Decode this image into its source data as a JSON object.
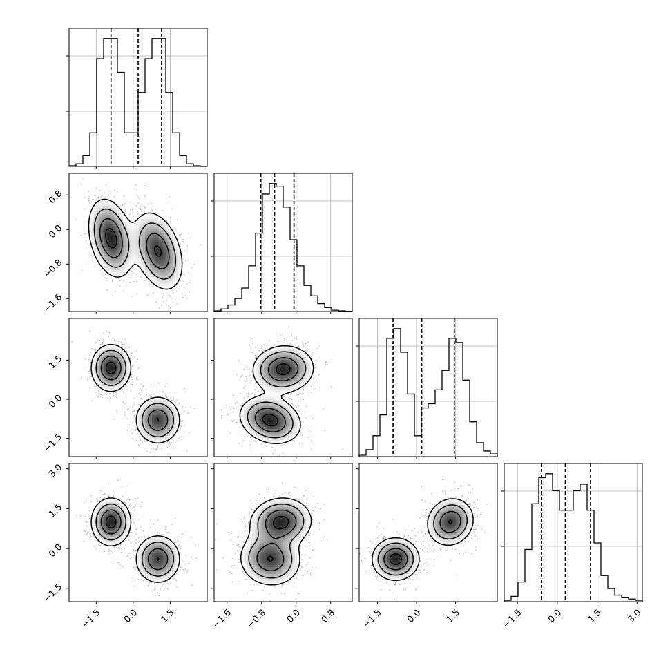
{
  "chart_data": {
    "type": "corner",
    "title": "",
    "n_parameters": 4,
    "parameter_labels": [
      "",
      "",
      "",
      ""
    ],
    "grid": true,
    "quantiles": [
      0.16,
      0.5,
      0.84
    ],
    "axis_ranges": [
      [
        -2.6,
        3.0
      ],
      [
        -1.9,
        1.3
      ],
      [
        -2.2,
        3.1
      ],
      [
        -2.0,
        3.2
      ]
    ],
    "ticks": [
      {
        "values": [
          -1.5,
          0.0,
          1.5
        ],
        "labels": [
          "−1.5",
          "0.0",
          "1.5"
        ]
      },
      {
        "values": [
          -1.6,
          -0.8,
          0.0,
          0.8
        ],
        "labels": [
          "−1.6",
          "−0.8",
          "0.0",
          "0.8"
        ]
      },
      {
        "values": [
          -1.5,
          0.0,
          1.5
        ],
        "labels": [
          "−1.5",
          "0.0",
          "1.5"
        ]
      },
      {
        "values": [
          -1.5,
          0.0,
          1.5,
          3.0
        ],
        "labels": [
          "−1.5",
          "0.0",
          "1.5",
          "3.0"
        ]
      }
    ],
    "diagonal_histograms": [
      {
        "parameter": 0,
        "bins": 20,
        "counts": [
          0.5,
          2,
          8,
          25,
          80,
          95,
          95,
          70,
          25,
          25,
          55,
          80,
          95,
          95,
          55,
          25,
          8,
          2,
          0.5,
          0
        ],
        "quantile_values": [
          -0.9,
          0.2,
          1.15
        ]
      },
      {
        "parameter": 1,
        "bins": 20,
        "counts": [
          0.5,
          2,
          5,
          10,
          18,
          35,
          60,
          90,
          98,
          96,
          80,
          55,
          35,
          20,
          12,
          6,
          3,
          1,
          0.5,
          0.2
        ],
        "quantile_values": [
          -0.82,
          -0.5,
          -0.05
        ]
      },
      {
        "parameter": 2,
        "bins": 20,
        "counts": [
          1,
          5,
          15,
          30,
          85,
          92,
          75,
          45,
          15,
          35,
          38,
          48,
          62,
          85,
          82,
          55,
          25,
          10,
          4,
          2
        ],
        "quantile_values": [
          -0.9,
          0.2,
          1.45
        ]
      },
      {
        "parameter": 3,
        "bins": 20,
        "counts": [
          1,
          4,
          15,
          40,
          75,
          95,
          98,
          85,
          70,
          70,
          85,
          90,
          70,
          45,
          20,
          10,
          5,
          3,
          2,
          1
        ],
        "quantile_values": [
          -0.6,
          0.3,
          1.25
        ]
      }
    ],
    "pairwise_panels": [
      {
        "x": 0,
        "y": 1,
        "modes": [
          {
            "center": [
              -0.9,
              -0.2
            ],
            "sd": [
              0.45,
              0.45
            ],
            "rho": -0.3,
            "weight": 0.5
          },
          {
            "center": [
              1.0,
              -0.5
            ],
            "sd": [
              0.5,
              0.45
            ],
            "rho": -0.35,
            "weight": 0.5
          }
        ]
      },
      {
        "x": 0,
        "y": 2,
        "modes": [
          {
            "center": [
              -0.9,
              1.2
            ],
            "sd": [
              0.4,
              0.45
            ],
            "rho": 0.0,
            "weight": 0.5
          },
          {
            "center": [
              1.0,
              -0.8
            ],
            "sd": [
              0.45,
              0.45
            ],
            "rho": 0.0,
            "weight": 0.5
          }
        ]
      },
      {
        "x": 1,
        "y": 2,
        "modes": [
          {
            "center": [
              -0.3,
              1.15
            ],
            "sd": [
              0.35,
              0.45
            ],
            "rho": 0.05,
            "weight": 0.5
          },
          {
            "center": [
              -0.6,
              -0.8
            ],
            "sd": [
              0.35,
              0.45
            ],
            "rho": -0.2,
            "weight": 0.5
          }
        ]
      },
      {
        "x": 0,
        "y": 3,
        "modes": [
          {
            "center": [
              -0.9,
              1.0
            ],
            "sd": [
              0.4,
              0.45
            ],
            "rho": 0.0,
            "weight": 0.5
          },
          {
            "center": [
              1.0,
              -0.4
            ],
            "sd": [
              0.45,
              0.45
            ],
            "rho": 0.0,
            "weight": 0.5
          }
        ]
      },
      {
        "x": 1,
        "y": 3,
        "modes": [
          {
            "center": [
              -0.35,
              1.0
            ],
            "sd": [
              0.35,
              0.45
            ],
            "rho": 0.05,
            "weight": 0.5
          },
          {
            "center": [
              -0.6,
              -0.4
            ],
            "sd": [
              0.35,
              0.5
            ],
            "rho": -0.05,
            "weight": 0.5
          }
        ]
      },
      {
        "x": 2,
        "y": 3,
        "modes": [
          {
            "center": [
              -0.8,
              -0.4
            ],
            "sd": [
              0.45,
              0.4
            ],
            "rho": 0.0,
            "weight": 0.5
          },
          {
            "center": [
              1.3,
              1.0
            ],
            "sd": [
              0.45,
              0.45
            ],
            "rho": 0.1,
            "weight": 0.5
          }
        ]
      }
    ],
    "contour_levels_sigma": [
      0.5,
      1.0,
      1.5,
      2.0
    ]
  }
}
